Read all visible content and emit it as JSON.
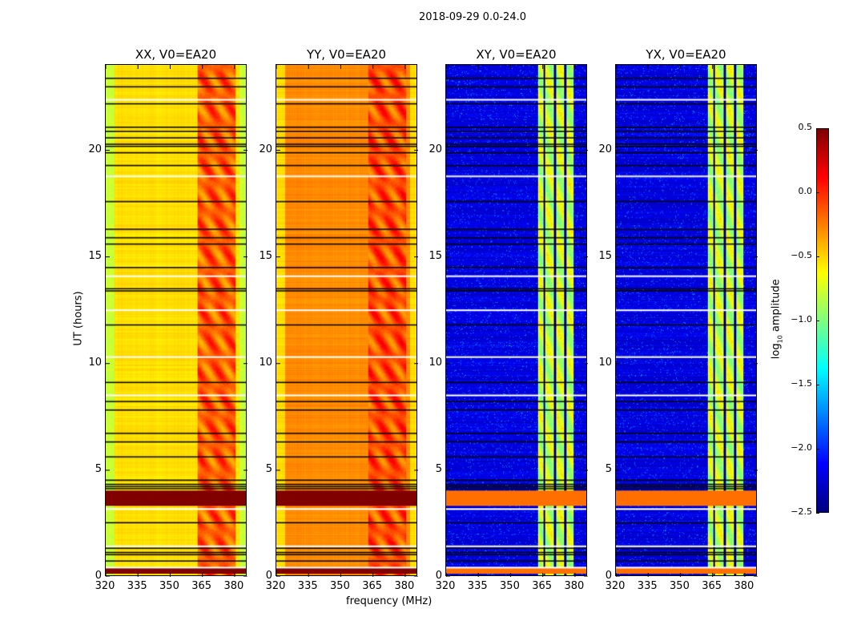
{
  "chart_data": {
    "type": "heatmap",
    "title": "2018-09-29 0.0-24.0",
    "xlabel": "frequency (MHz)",
    "ylabel": "UT (hours)",
    "xlim": [
      320,
      386
    ],
    "ylim": [
      0,
      24
    ],
    "xticks": [
      320,
      335,
      350,
      365,
      380
    ],
    "yticks": [
      0,
      5,
      10,
      15,
      20
    ],
    "colorbar": {
      "label": "log",
      "label_sub": "10",
      "label_rest": " amplitude",
      "range": [
        -2.5,
        0.5
      ],
      "ticks": [
        "0.5",
        "0.0",
        "−0.5",
        "−1.0",
        "−1.5",
        "−2.0",
        "−2.5"
      ],
      "colormap": "jet"
    },
    "panels": [
      {
        "title": "XX, V0=EA20",
        "base_level": -0.6,
        "band_level": -0.2,
        "band_mhz": [
          363,
          381
        ],
        "burst_level": 0.5
      },
      {
        "title": "YY, V0=EA20",
        "base_level": -0.35,
        "band_level": -0.15,
        "band_mhz": [
          363,
          381
        ],
        "burst_level": 0.5
      },
      {
        "title": "XY, V0=EA20",
        "base_level": -2.3,
        "band_level": -0.8,
        "band_mhz": [
          363,
          380
        ],
        "burst_level": -0.2
      },
      {
        "title": "YX, V0=EA20",
        "base_level": -2.3,
        "band_level": -0.8,
        "band_mhz": [
          363,
          380
        ],
        "burst_level": -0.2
      }
    ],
    "flagged_hours_black": [
      23.4,
      23.0,
      22.2,
      21.1,
      20.9,
      20.6,
      20.3,
      20.2,
      19.9,
      19.3,
      17.6,
      16.3,
      15.9,
      15.6,
      14.5,
      13.5,
      13.4,
      11.8,
      9.1,
      8.2,
      7.8,
      6.7,
      6.3,
      5.6,
      4.5,
      4.3,
      4.2,
      4.1,
      2.5,
      1.3,
      1.1,
      1.0,
      0.7
    ],
    "flagged_hours_white": [
      22.4,
      18.8,
      14.1,
      12.5,
      10.3,
      8.5,
      3.15,
      1.4,
      0.4
    ],
    "burst_hours": [
      [
        3.3,
        4.0
      ],
      [
        0.1,
        0.35
      ]
    ]
  }
}
